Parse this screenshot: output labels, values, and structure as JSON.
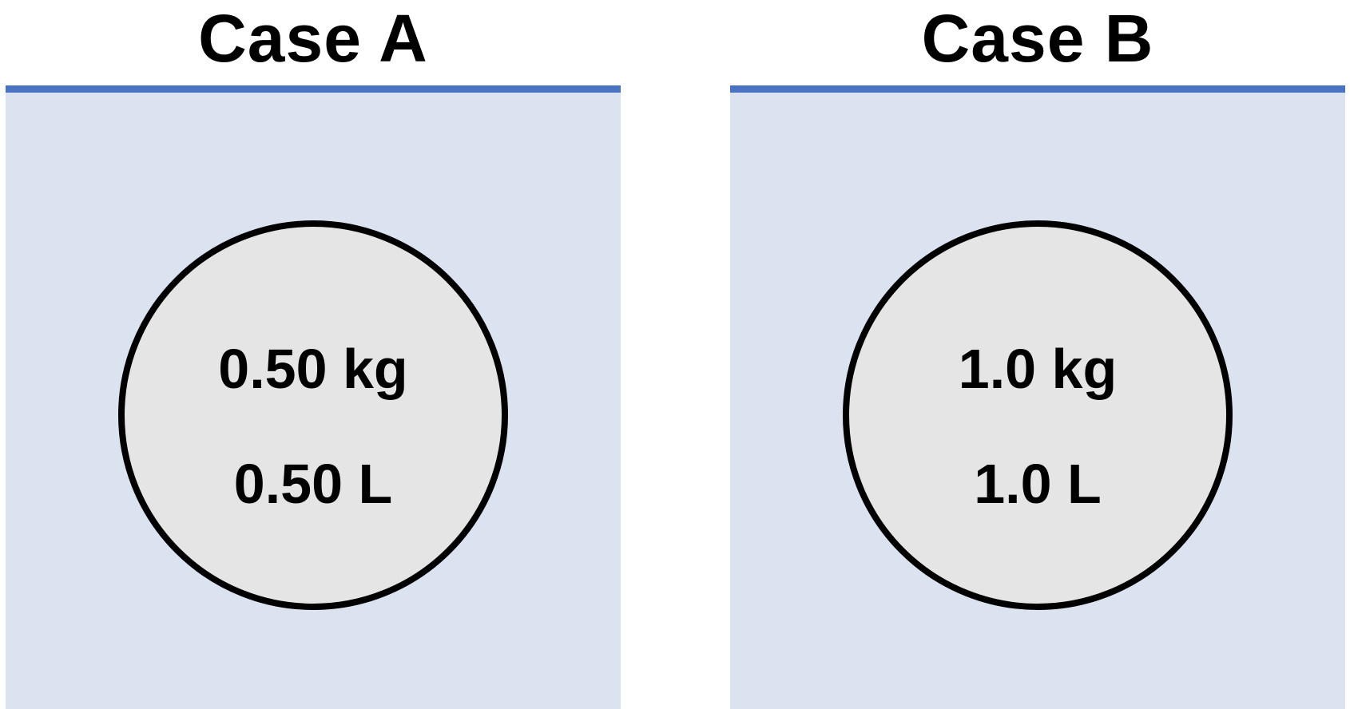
{
  "colors": {
    "fluid": "#dce3f0",
    "surface_line": "#4a72c2",
    "object_fill": "#e5e5e5",
    "object_outline": "#000000"
  },
  "cases": [
    {
      "title": "Case A",
      "mass": "0.50 kg",
      "volume": "0.50 L"
    },
    {
      "title": "Case B",
      "mass": "1.0 kg",
      "volume": "1.0 L"
    }
  ]
}
